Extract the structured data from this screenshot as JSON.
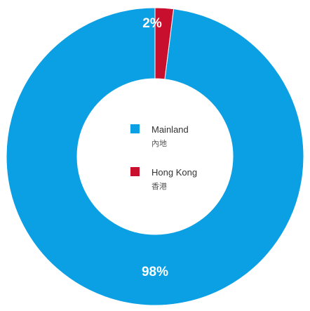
{
  "chart_data": {
    "type": "pie",
    "donut": true,
    "title": "",
    "categories": [
      "Mainland",
      "Hong Kong"
    ],
    "values": [
      98,
      2
    ],
    "labels": [
      "98%",
      "2%"
    ],
    "legend": [
      {
        "name": "Mainland",
        "name_zh": "內地",
        "color": "#0B9FE3"
      },
      {
        "name": "Hong Kong",
        "name_zh": "香港",
        "color": "#C8102E"
      }
    ],
    "legend_position": "center"
  }
}
